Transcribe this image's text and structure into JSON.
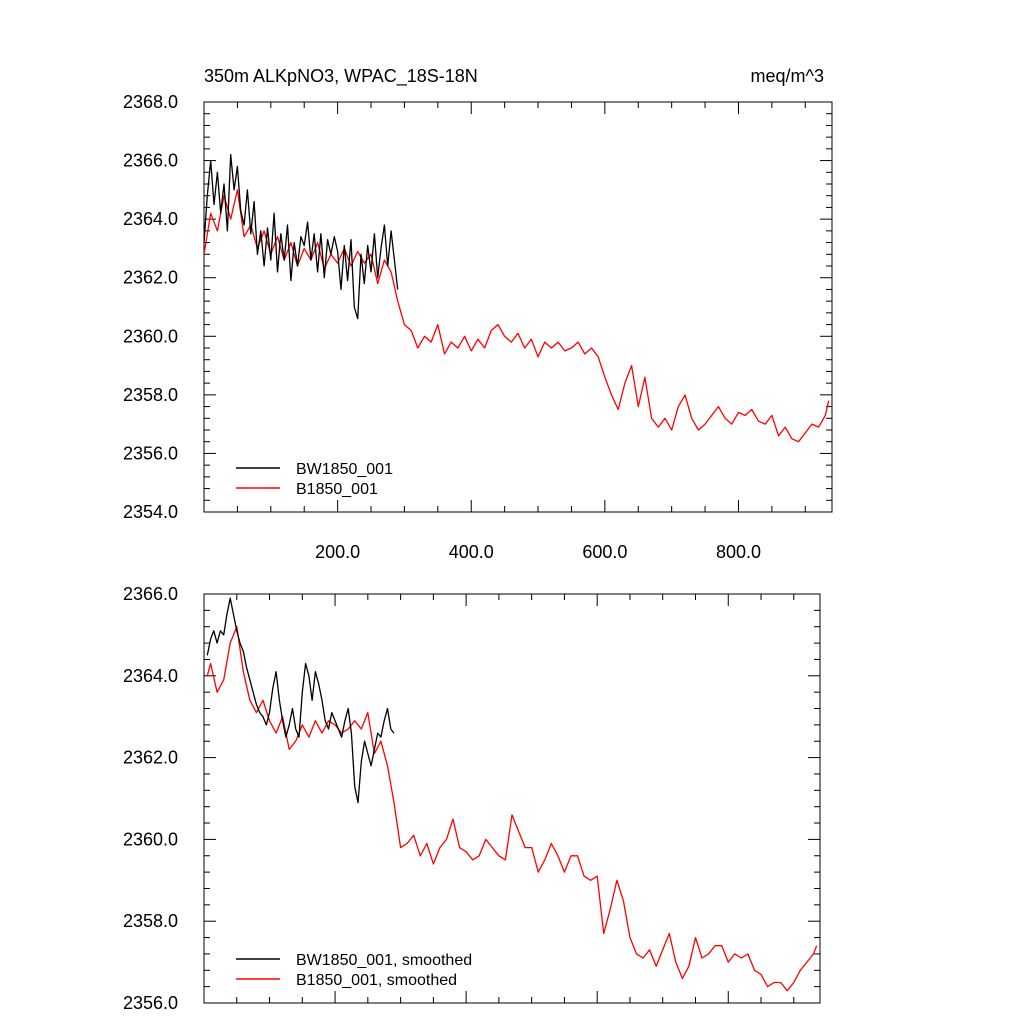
{
  "chart_data": [
    {
      "type": "line",
      "title_left": "350m ALKpNO3, WPAC_18S-18N",
      "title_right": "meq/m^3",
      "xlabel": "",
      "ylabel": "",
      "xlim": [
        0,
        940
      ],
      "ylim": [
        2354,
        2368
      ],
      "x_ticks": [
        200,
        400,
        600,
        800
      ],
      "x_tick_labels": [
        "200.0",
        "400.0",
        "600.0",
        "800.0"
      ],
      "y_ticks": [
        2354,
        2356,
        2358,
        2360,
        2362,
        2364,
        2366,
        2368
      ],
      "y_tick_labels": [
        "2354.0",
        "2356.0",
        "2358.0",
        "2360.0",
        "2362.0",
        "2364.0",
        "2366.0",
        "2368.0"
      ],
      "legend_position": "bottom-left",
      "series": [
        {
          "name": "BW1850_001",
          "color": "#000000",
          "x": [
            0,
            5,
            10,
            15,
            20,
            25,
            30,
            35,
            40,
            45,
            50,
            55,
            60,
            65,
            70,
            75,
            80,
            85,
            90,
            95,
            100,
            105,
            110,
            115,
            120,
            125,
            130,
            135,
            140,
            145,
            150,
            155,
            160,
            165,
            170,
            175,
            180,
            185,
            190,
            195,
            200,
            205,
            210,
            215,
            220,
            225,
            230,
            235,
            240,
            245,
            250,
            255,
            260,
            265,
            270,
            275,
            280,
            285,
            290
          ],
          "values": [
            2363.2,
            2364.8,
            2366.0,
            2364.5,
            2365.6,
            2364.2,
            2365.2,
            2363.6,
            2366.2,
            2365.0,
            2365.8,
            2364.3,
            2363.8,
            2365.0,
            2363.5,
            2364.6,
            2362.8,
            2363.6,
            2362.4,
            2363.7,
            2362.6,
            2364.2,
            2362.2,
            2363.5,
            2362.6,
            2363.8,
            2361.9,
            2363.2,
            2362.4,
            2363.4,
            2363.1,
            2363.9,
            2362.6,
            2363.5,
            2362.2,
            2363.5,
            2362.0,
            2363.3,
            2362.8,
            2363.4,
            2362.9,
            2361.6,
            2363.1,
            2361.9,
            2363.3,
            2361.0,
            2360.6,
            2362.8,
            2361.8,
            2363.1,
            2362.2,
            2363.5,
            2362.0,
            2363.0,
            2363.8,
            2362.4,
            2363.6,
            2362.6,
            2361.6
          ]
        },
        {
          "name": "B1850_001",
          "color": "#ff0000",
          "x": [
            0,
            10,
            20,
            30,
            40,
            50,
            60,
            70,
            80,
            90,
            100,
            110,
            120,
            130,
            140,
            150,
            160,
            170,
            180,
            190,
            200,
            210,
            220,
            230,
            240,
            250,
            260,
            270,
            280,
            290,
            300,
            310,
            320,
            330,
            340,
            350,
            360,
            370,
            380,
            390,
            400,
            410,
            420,
            430,
            440,
            450,
            460,
            470,
            480,
            490,
            500,
            510,
            520,
            530,
            540,
            550,
            560,
            570,
            580,
            590,
            600,
            610,
            620,
            630,
            640,
            650,
            660,
            670,
            680,
            690,
            700,
            710,
            720,
            730,
            740,
            750,
            760,
            770,
            780,
            790,
            800,
            810,
            820,
            830,
            840,
            850,
            860,
            870,
            880,
            890,
            900,
            910,
            920,
            930,
            935
          ],
          "values": [
            2362.8,
            2364.2,
            2363.6,
            2364.8,
            2364.0,
            2365.0,
            2363.4,
            2363.8,
            2363.0,
            2363.6,
            2362.8,
            2363.4,
            2362.6,
            2363.2,
            2362.4,
            2363.0,
            2362.6,
            2363.2,
            2362.3,
            2362.8,
            2362.5,
            2363.0,
            2362.4,
            2362.9,
            2362.5,
            2362.8,
            2361.8,
            2362.6,
            2362.2,
            2361.2,
            2360.4,
            2360.2,
            2359.6,
            2360.0,
            2359.8,
            2360.4,
            2359.4,
            2359.8,
            2359.6,
            2360.0,
            2359.5,
            2359.9,
            2359.6,
            2360.2,
            2360.4,
            2360.0,
            2359.8,
            2360.1,
            2359.6,
            2359.9,
            2359.3,
            2359.8,
            2359.6,
            2359.8,
            2359.5,
            2359.6,
            2359.8,
            2359.4,
            2359.6,
            2359.3,
            2358.6,
            2358.0,
            2357.5,
            2358.4,
            2359.0,
            2357.6,
            2358.6,
            2357.2,
            2356.9,
            2357.2,
            2356.8,
            2357.6,
            2358.0,
            2357.2,
            2356.8,
            2357.0,
            2357.3,
            2357.6,
            2357.2,
            2357.0,
            2357.4,
            2357.3,
            2357.5,
            2357.1,
            2357.0,
            2357.3,
            2356.6,
            2356.9,
            2356.5,
            2356.4,
            2356.7,
            2357.0,
            2356.9,
            2357.3,
            2357.8
          ]
        }
      ]
    },
    {
      "type": "line",
      "title_left": "",
      "title_right": "",
      "xlabel": "",
      "ylabel": "",
      "xlim": [
        0,
        940
      ],
      "ylim": [
        2356,
        2366
      ],
      "x_ticks": [
        200,
        400,
        600,
        800
      ],
      "x_tick_labels": [],
      "y_ticks": [
        2356,
        2358,
        2360,
        2362,
        2364,
        2366
      ],
      "y_tick_labels": [
        "2356.0",
        "2358.0",
        "2360.0",
        "2362.0",
        "2364.0",
        "2366.0"
      ],
      "legend_position": "bottom-left",
      "series": [
        {
          "name": "BW1850_001, smoothed",
          "color": "#000000",
          "x": [
            5,
            10,
            15,
            20,
            25,
            30,
            35,
            40,
            45,
            50,
            55,
            60,
            65,
            70,
            75,
            80,
            85,
            90,
            95,
            100,
            105,
            110,
            115,
            120,
            125,
            130,
            135,
            140,
            145,
            150,
            155,
            160,
            165,
            170,
            175,
            180,
            185,
            190,
            195,
            200,
            205,
            210,
            215,
            220,
            225,
            230,
            235,
            240,
            245,
            250,
            255,
            260,
            265,
            270,
            275,
            280,
            285,
            290
          ],
          "values": [
            2364.5,
            2364.9,
            2365.1,
            2364.8,
            2365.1,
            2365.0,
            2365.5,
            2365.9,
            2365.5,
            2365.1,
            2364.8,
            2364.6,
            2364.2,
            2363.9,
            2363.6,
            2363.3,
            2363.1,
            2363.0,
            2362.8,
            2363.1,
            2363.7,
            2364.1,
            2363.4,
            2362.9,
            2362.5,
            2362.8,
            2363.2,
            2362.7,
            2362.5,
            2363.6,
            2364.3,
            2364.0,
            2363.4,
            2364.1,
            2363.8,
            2363.4,
            2362.9,
            2362.7,
            2363.1,
            2362.9,
            2362.7,
            2362.5,
            2362.9,
            2363.2,
            2362.6,
            2361.3,
            2360.9,
            2361.9,
            2362.4,
            2362.1,
            2361.8,
            2362.2,
            2362.6,
            2362.5,
            2362.9,
            2363.2,
            2362.7,
            2362.6
          ]
        },
        {
          "name": "B1850_001, smoothed",
          "color": "#ff0000",
          "x": [
            5,
            10,
            20,
            30,
            40,
            50,
            60,
            70,
            80,
            90,
            100,
            110,
            120,
            130,
            140,
            150,
            160,
            170,
            180,
            190,
            200,
            210,
            220,
            230,
            240,
            250,
            260,
            270,
            280,
            290,
            300,
            310,
            320,
            330,
            340,
            350,
            360,
            370,
            380,
            390,
            400,
            410,
            420,
            430,
            440,
            450,
            460,
            470,
            480,
            490,
            500,
            510,
            520,
            530,
            540,
            550,
            560,
            570,
            580,
            590,
            600,
            610,
            620,
            630,
            640,
            650,
            660,
            670,
            680,
            690,
            700,
            710,
            720,
            730,
            740,
            750,
            760,
            770,
            780,
            790,
            800,
            810,
            820,
            830,
            840,
            850,
            860,
            870,
            880,
            890,
            900,
            910,
            920,
            930,
            935
          ],
          "values": [
            2364.0,
            2364.3,
            2363.6,
            2363.9,
            2364.8,
            2365.2,
            2364.1,
            2363.4,
            2363.1,
            2363.4,
            2362.9,
            2362.6,
            2363.0,
            2362.2,
            2362.4,
            2362.8,
            2362.5,
            2362.9,
            2362.6,
            2362.9,
            2362.8,
            2362.6,
            2362.7,
            2362.9,
            2362.7,
            2363.1,
            2362.1,
            2362.4,
            2361.8,
            2360.9,
            2359.8,
            2359.9,
            2360.1,
            2359.6,
            2359.9,
            2359.4,
            2359.8,
            2360.0,
            2360.5,
            2359.8,
            2359.7,
            2359.5,
            2359.6,
            2360.0,
            2359.8,
            2359.6,
            2359.5,
            2360.6,
            2360.2,
            2359.8,
            2359.8,
            2359.2,
            2359.5,
            2359.9,
            2359.6,
            2359.2,
            2359.6,
            2359.6,
            2359.1,
            2359.0,
            2359.1,
            2357.7,
            2358.3,
            2359.0,
            2358.5,
            2357.6,
            2357.2,
            2357.1,
            2357.3,
            2356.9,
            2357.3,
            2357.7,
            2357.0,
            2356.6,
            2356.9,
            2357.6,
            2357.1,
            2357.2,
            2357.4,
            2357.4,
            2357.0,
            2357.2,
            2357.1,
            2357.2,
            2356.8,
            2356.7,
            2356.4,
            2356.5,
            2356.5,
            2356.3,
            2356.5,
            2356.8,
            2357.0,
            2357.2,
            2357.4
          ]
        }
      ]
    }
  ]
}
